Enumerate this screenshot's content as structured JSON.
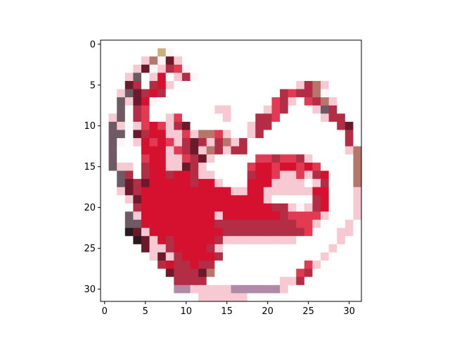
{
  "chart_data": {
    "type": "heatmap",
    "title": "",
    "xlabel": "",
    "ylabel": "",
    "grid": false,
    "legend": "none",
    "xlim": [
      -0.5,
      31.5
    ],
    "ylim": [
      31.5,
      -0.5
    ],
    "x_ticks": [
      0,
      5,
      10,
      15,
      20,
      25,
      30
    ],
    "y_ticks": [
      0,
      5,
      10,
      15,
      20,
      25,
      30
    ],
    "x_tick_labels": [
      "0",
      "5",
      "10",
      "15",
      "20",
      "25",
      "30"
    ],
    "y_tick_labels": [
      "0",
      "5",
      "10",
      "15",
      "20",
      "25",
      "30"
    ],
    "rows": 32,
    "cols": 32,
    "palette": {
      "w": "#ffffff",
      "q": "#fdf5f7",
      "p": "#f6c9d3",
      "r": "#e23a52",
      "R": "#d6102f",
      "m": "#b32d45",
      "d": "#6a1a2a",
      "k": "#2a1a1e",
      "g": "#6e5a62",
      "t": "#b8766a",
      "y": "#c8b07a",
      "v": "#b08aa6"
    },
    "pixels": [
      "wwwwwwwwwwwwwwwwwwwwwwwwwwwwwwww",
      "wwwwwwwyqwwwwwwwwwwwwwwwwwwwwwww",
      "wwwwwptqdpwwwwwwwwwwwwwwwwwwwwww",
      "wwwwpdqpmrqwwwwwwwwwwwwwwwwwwwww",
      "wwwpgwpRwpmqwwwwwwwwwwwwwwwwwwww",
      "wwwdmwmRpwwwwwwwwwwwwwwwpmtpwwww",
      "wwpgdmRmwwwwwwwwwwwwwwmrmmtqwwww",
      "wwgpdRqwwwwwwwwwwwwwwrmpwrmtpwww",
      "wwgwmrwwwwwwwwppwwwwprmwwwpgmwww",
      "wpgwmrwwprwwwwwpwwwmmrwwwwwpmmww",
      "wgpwprRrpmdwwwwwwwpmmwwwwwwwwmdw",
      "wggwdmRRpprpttrpwwpmwwwwwwwwwwmw",
      "wgqwpRrRrpmdmpmtpmwwwwwwwwwwwwmw",
      "wgwwwRRRprmdptmpmmwwwwwwwwwwwwpt",
      "wgwwwrRRpprmdpwwwwwrrmrrmpwwwwwt",
      "wgppwmRRppdmpwwwwwrRRrRRrRrwwwwt",
      "wwgmwmRRmRRmppwwwwmRRrpprpmRwwwt",
      "wwgdmdRRRRRmRRpwwwRRRppppwpmwwwt",
      "wwpdmRRRRRRRRRRRppRRppppppRRwwwp",
      "wwwpdRRRRRRRRRRRRRRRpwwwwwmRwwwp",
      "wwwwmRRRRRRRRRRRRRRRRmmpqpmRwwwp",
      "wwwgpRRRRRRRRRpRRRRRRRmrrrrpwwwp",
      "wwwggRRRRRRRRRmmmmmmmmmmrrpwwwpw",
      "wwwkdpRRRRRRRRRmmmmmmmmmmrwwwppw",
      "wwwwkdpRmRRRRRmpppppppppwwwwwpww",
      "wwwwwdppmRRRRmpwwwwwwwwwwwwwpwww",
      "wwwwwwpdpmRRRRmwwwwwwwwwwwwpwwww",
      "wwwwwwwmRmmRmmwwwwwwwwwwwrpwwwww",
      "wwwwwwwwdmmmdtwwwwwwwwwwrmwwwwww",
      "wwwwwwwwwmmmmwwwwwwwwwppmwwwwwww",
      "wwwwwwwwwvvpppppvvvvvvpwwwwwwwww",
      "wwwwwwwwwwwwppppppwwwwwwwwwwwwww"
    ]
  }
}
